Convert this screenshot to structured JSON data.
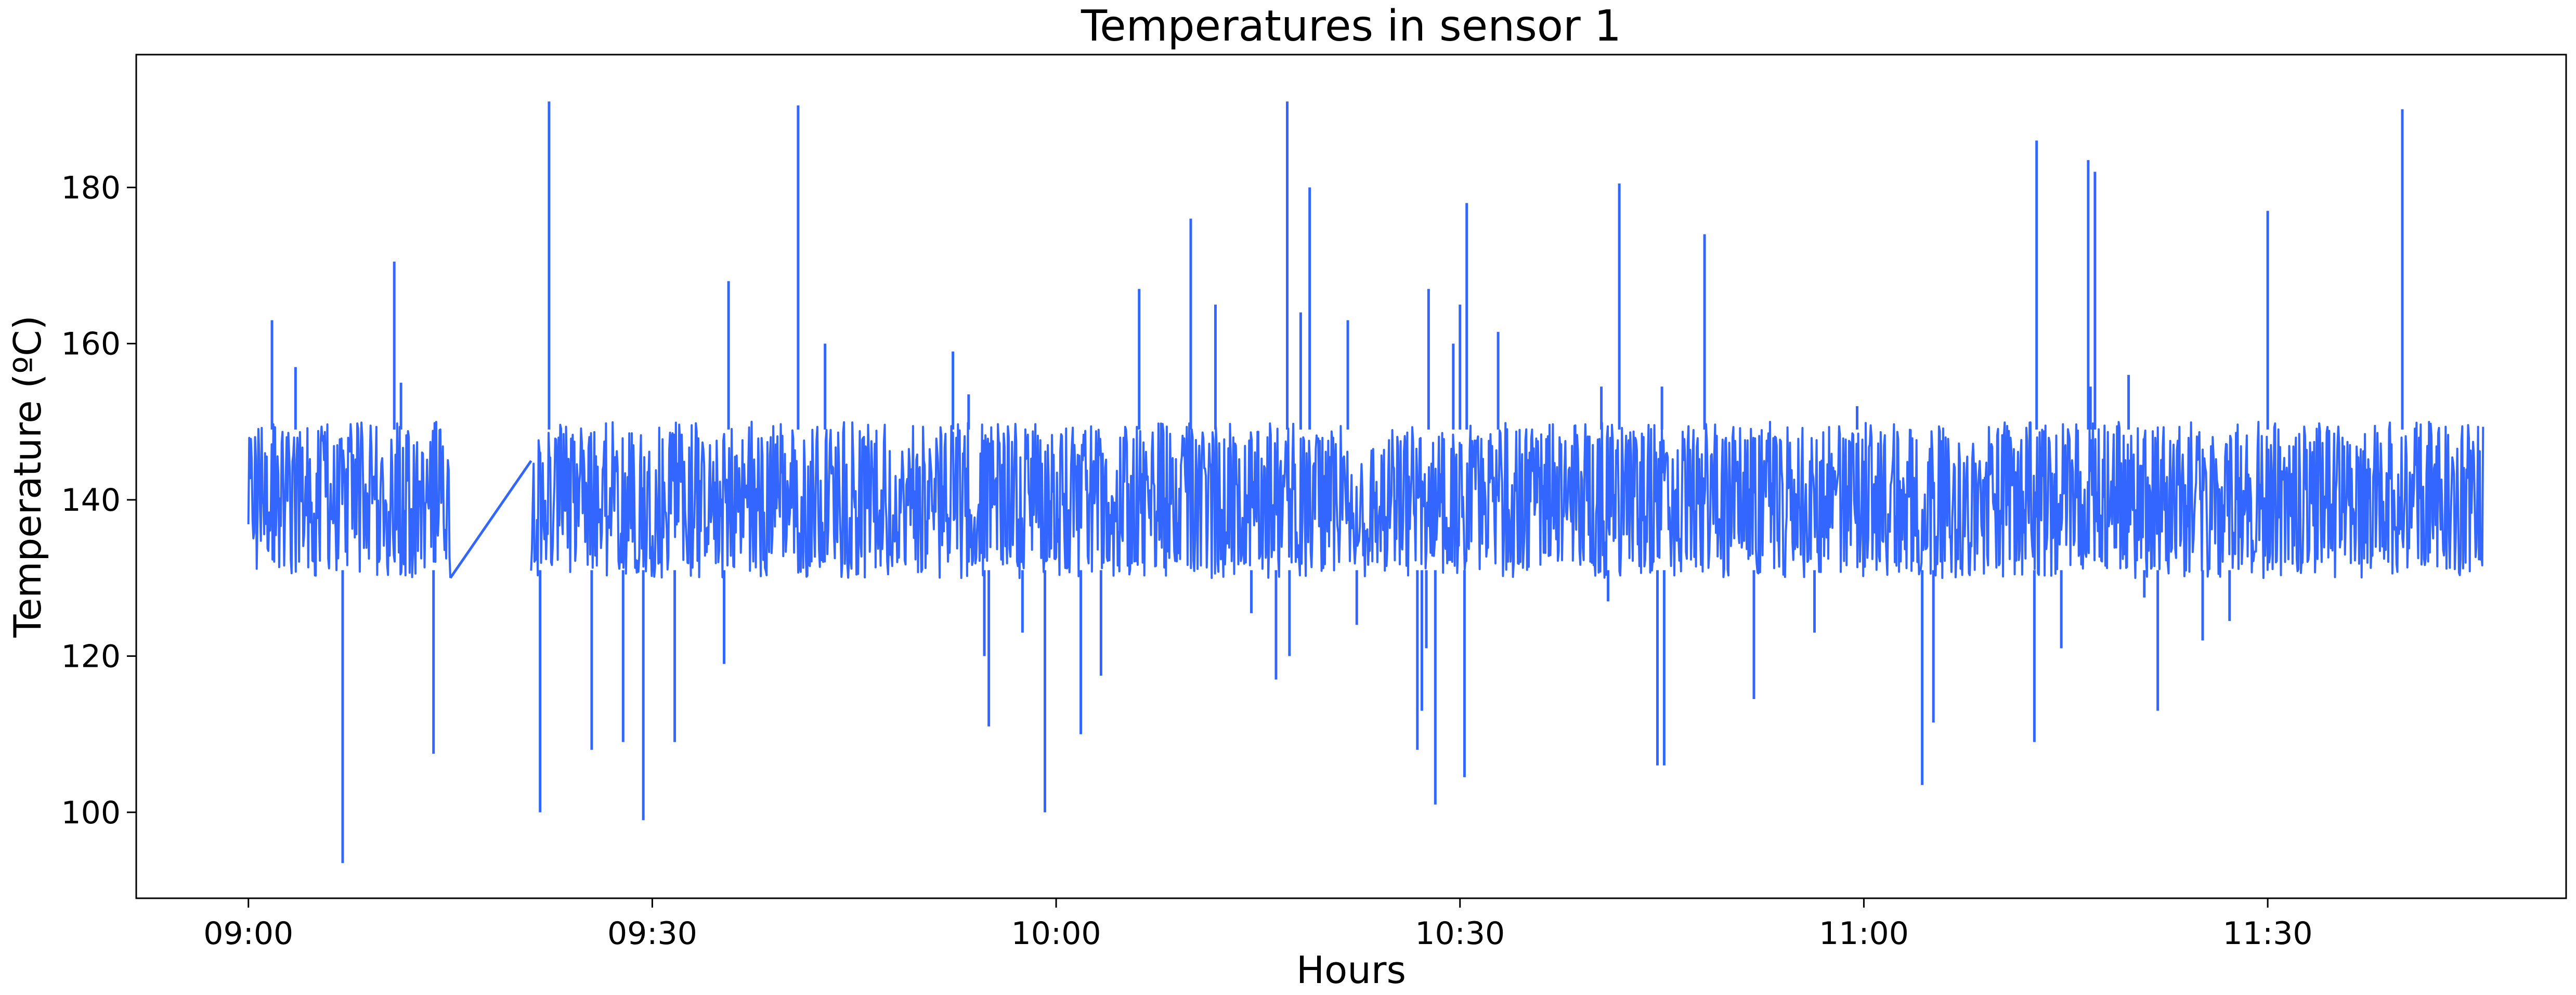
{
  "chart_data": {
    "type": "line",
    "title": "Temperatures in sensor 1",
    "xlabel": "Hours",
    "ylabel": "Temperature (ºC)",
    "xlim": [
      "08:51:40",
      "11:52:10"
    ],
    "ylim": [
      89,
      197
    ],
    "x_ticks": [
      "09:00",
      "09:30",
      "10:00",
      "10:30",
      "11:00",
      "11:30"
    ],
    "y_ticks": [
      100,
      120,
      140,
      160,
      180
    ],
    "grid": false,
    "legend": "none",
    "color": "#3366ff",
    "series": [
      {
        "start": "09:00",
        "end": "11:46",
        "gap": {
          "from": "09:15",
          "to": "09:21",
          "from_value": 130,
          "to_value": 145
        },
        "baseline_band": [
          130,
          150
        ],
        "spikes": [
          {
            "t": "09:01:45",
            "v": 163
          },
          {
            "t": "09:03:30",
            "v": 157
          },
          {
            "t": "09:07:00",
            "v": 93.5
          },
          {
            "t": "09:10:50",
            "v": 170.5
          },
          {
            "t": "09:11:20",
            "v": 155
          },
          {
            "t": "09:13:45",
            "v": 107.5
          },
          {
            "t": "09:21:40",
            "v": 100
          },
          {
            "t": "09:22:20",
            "v": 191
          },
          {
            "t": "09:25:30",
            "v": 108
          },
          {
            "t": "09:27:50",
            "v": 109
          },
          {
            "t": "09:29:20",
            "v": 99
          },
          {
            "t": "09:31:40",
            "v": 109
          },
          {
            "t": "09:35:20",
            "v": 119
          },
          {
            "t": "09:35:40",
            "v": 168
          },
          {
            "t": "09:40:50",
            "v": 190.5
          },
          {
            "t": "09:42:50",
            "v": 160
          },
          {
            "t": "09:52:20",
            "v": 159
          },
          {
            "t": "09:53:30",
            "v": 153.5
          },
          {
            "t": "09:54:40",
            "v": 120
          },
          {
            "t": "09:55:00",
            "v": 111
          },
          {
            "t": "09:57:30",
            "v": 123
          },
          {
            "t": "09:59:10",
            "v": 100
          },
          {
            "t": "10:01:50",
            "v": 110
          },
          {
            "t": "10:03:20",
            "v": 117.5
          },
          {
            "t": "10:06:10",
            "v": 167
          },
          {
            "t": "10:10:00",
            "v": 176
          },
          {
            "t": "10:11:50",
            "v": 165
          },
          {
            "t": "10:14:30",
            "v": 125.5
          },
          {
            "t": "10:16:20",
            "v": 117
          },
          {
            "t": "10:17:10",
            "v": 191
          },
          {
            "t": "10:17:20",
            "v": 120
          },
          {
            "t": "10:18:10",
            "v": 164
          },
          {
            "t": "10:18:50",
            "v": 180
          },
          {
            "t": "10:21:40",
            "v": 163
          },
          {
            "t": "10:22:20",
            "v": 124
          },
          {
            "t": "10:26:50",
            "v": 108
          },
          {
            "t": "10:27:10",
            "v": 113
          },
          {
            "t": "10:27:30",
            "v": 121
          },
          {
            "t": "10:27:40",
            "v": 167
          },
          {
            "t": "10:28:10",
            "v": 101
          },
          {
            "t": "10:29:30",
            "v": 160
          },
          {
            "t": "10:30:00",
            "v": 165
          },
          {
            "t": "10:30:30",
            "v": 178
          },
          {
            "t": "10:30:20",
            "v": 104.5
          },
          {
            "t": "10:32:50",
            "v": 161.5
          },
          {
            "t": "10:40:30",
            "v": 154.5
          },
          {
            "t": "10:41:00",
            "v": 127
          },
          {
            "t": "10:41:50",
            "v": 180.5
          },
          {
            "t": "10:44:40",
            "v": 106
          },
          {
            "t": "10:45:10",
            "v": 106
          },
          {
            "t": "10:45:00",
            "v": 154.5
          },
          {
            "t": "10:48:10",
            "v": 174
          },
          {
            "t": "10:51:50",
            "v": 114.5
          },
          {
            "t": "10:56:20",
            "v": 123
          },
          {
            "t": "10:59:30",
            "v": 152
          },
          {
            "t": "11:04:20",
            "v": 103.5
          },
          {
            "t": "11:05:10",
            "v": 111.5
          },
          {
            "t": "11:08:30",
            "v": 131
          },
          {
            "t": "11:12:40",
            "v": 109
          },
          {
            "t": "11:12:50",
            "v": 186
          },
          {
            "t": "11:14:40",
            "v": 121
          },
          {
            "t": "11:16:40",
            "v": 183.5
          },
          {
            "t": "11:16:50",
            "v": 154.5
          },
          {
            "t": "11:17:10",
            "v": 182
          },
          {
            "t": "11:19:40",
            "v": 156
          },
          {
            "t": "11:20:50",
            "v": 127.5
          },
          {
            "t": "11:21:50",
            "v": 113
          },
          {
            "t": "11:25:10",
            "v": 122
          },
          {
            "t": "11:27:10",
            "v": 124.5
          },
          {
            "t": "11:30:00",
            "v": 177
          },
          {
            "t": "11:40:00",
            "v": 190
          }
        ]
      }
    ]
  }
}
